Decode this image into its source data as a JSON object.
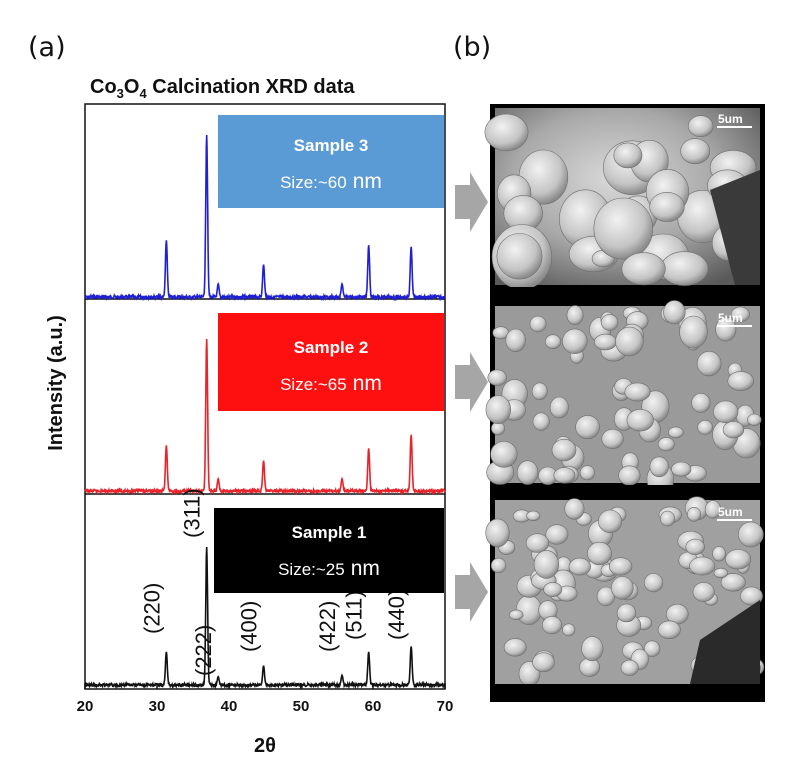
{
  "panel_a_label": "(a)",
  "panel_b_label": "(b)",
  "title_prefix": "Co",
  "title_sub1": "3",
  "title_mid": "O",
  "title_sub2": "4",
  "title_rest": " Calcination XRD data",
  "colors": {
    "sample3": "#1f1fd6",
    "sample2": "#e8232a",
    "sample1": "#111111",
    "box3": "#5b9bd5",
    "box2": "#ff1010",
    "box1": "#000000",
    "arrow": "#a6a6a6"
  },
  "samples": [
    {
      "id": "sample3",
      "name": "Sample 3",
      "size_text": "Size:~60",
      "unit": "nm",
      "scale_bar": "5um"
    },
    {
      "id": "sample2",
      "name": "Sample 2",
      "size_text": "Size:~65",
      "unit": "nm",
      "scale_bar": "5um"
    },
    {
      "id": "sample1",
      "name": "Sample 1",
      "size_text": "Size:~25",
      "unit": "nm",
      "scale_bar": "5um"
    }
  ],
  "chart_data": {
    "type": "line",
    "title": "Co3O4 Calcination XRD data",
    "xlabel": "2θ",
    "ylabel": "Intensity (a.u.)",
    "xlim": [
      20,
      70
    ],
    "xticks": [
      20,
      30,
      40,
      50,
      60,
      70
    ],
    "grid": false,
    "peak_labels": [
      {
        "hkl": "(220)",
        "two_theta": 31.3
      },
      {
        "hkl": "(311)",
        "two_theta": 36.9
      },
      {
        "hkl": "(222)",
        "two_theta": 38.5
      },
      {
        "hkl": "(400)",
        "two_theta": 44.8
      },
      {
        "hkl": "(422)",
        "two_theta": 55.7
      },
      {
        "hkl": "(511)",
        "two_theta": 59.4
      },
      {
        "hkl": "(440)",
        "two_theta": 65.3
      }
    ],
    "series": [
      {
        "name": "Sample 3",
        "peaks": [
          {
            "two_theta": 31.3,
            "intensity": 0.35
          },
          {
            "two_theta": 36.9,
            "intensity": 1.0
          },
          {
            "two_theta": 38.5,
            "intensity": 0.08
          },
          {
            "two_theta": 44.8,
            "intensity": 0.2
          },
          {
            "two_theta": 55.7,
            "intensity": 0.08
          },
          {
            "two_theta": 59.4,
            "intensity": 0.32
          },
          {
            "two_theta": 65.3,
            "intensity": 0.31
          }
        ]
      },
      {
        "name": "Sample 2",
        "peaks": [
          {
            "two_theta": 31.3,
            "intensity": 0.3
          },
          {
            "two_theta": 36.9,
            "intensity": 1.0
          },
          {
            "two_theta": 38.5,
            "intensity": 0.08
          },
          {
            "two_theta": 44.8,
            "intensity": 0.2
          },
          {
            "two_theta": 55.7,
            "intensity": 0.08
          },
          {
            "two_theta": 59.4,
            "intensity": 0.28
          },
          {
            "two_theta": 65.3,
            "intensity": 0.37
          }
        ]
      },
      {
        "name": "Sample 1",
        "peaks": [
          {
            "two_theta": 31.3,
            "intensity": 0.24
          },
          {
            "two_theta": 36.9,
            "intensity": 1.0
          },
          {
            "two_theta": 38.5,
            "intensity": 0.06
          },
          {
            "two_theta": 44.8,
            "intensity": 0.14
          },
          {
            "two_theta": 55.7,
            "intensity": 0.07
          },
          {
            "two_theta": 59.4,
            "intensity": 0.24
          },
          {
            "two_theta": 65.3,
            "intensity": 0.28
          }
        ]
      }
    ]
  }
}
